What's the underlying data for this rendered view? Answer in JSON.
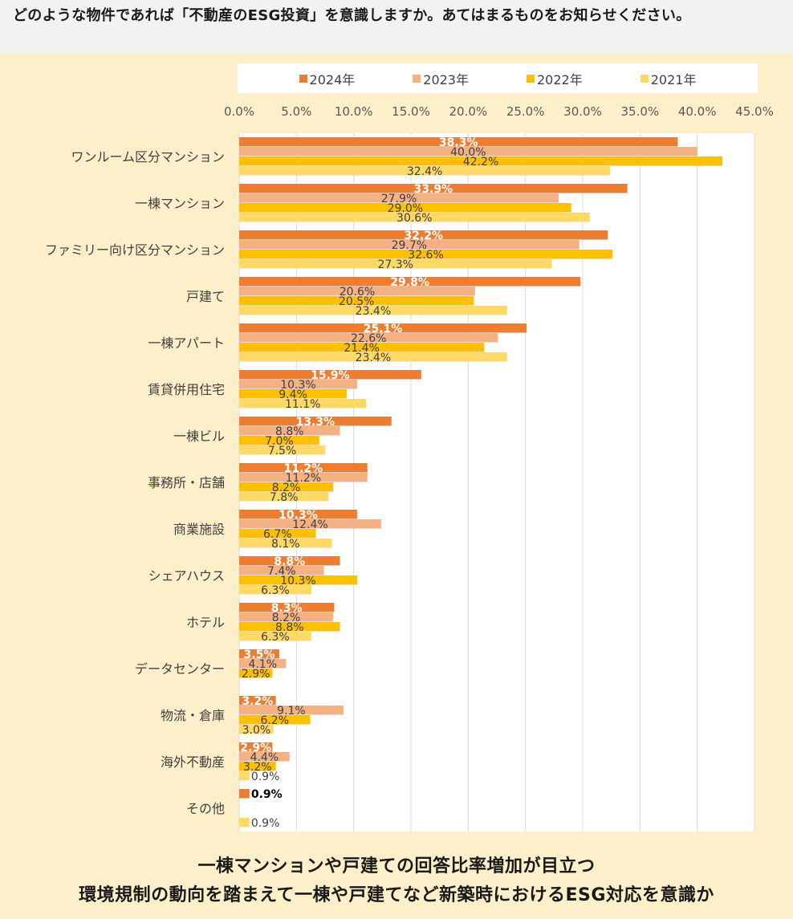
{
  "question": "どのような物件であれば「不動産のESG投資」を意識しますか。あてはまるものをお知らせください。",
  "footer": {
    "line1": "一棟マンションや戸建ての回答比率増加が目立つ",
    "line2": "環境規制の動向を踏まえて一棟や戸建てなど新築時におけるESG対応を意識か"
  },
  "colors": {
    "2024年": "#ed7d31",
    "2023年": "#f4b183",
    "2022年": "#ffc000",
    "2021年": "#ffd966"
  },
  "chart_data": {
    "type": "bar",
    "orientation": "horizontal",
    "title": "どのような物件であれば「不動産のESG投資」を意識しますか。あてはまるものをお知らせください。",
    "xlim": [
      0,
      45
    ],
    "xticks": [
      "0.0%",
      "5.0%",
      "10.0%",
      "15.0%",
      "20.0%",
      "25.0%",
      "30.0%",
      "35.0%",
      "40.0%",
      "45.0%"
    ],
    "legend_position": "top",
    "categories": [
      "ワンルーム区分マンション",
      "一棟マンション",
      "ファミリー向け区分マンション",
      "戸建て",
      "一棟アパート",
      "賃貸併用住宅",
      "一棟ビル",
      "事務所・店舗",
      "商業施設",
      "シェアハウス",
      "ホテル",
      "データセンター",
      "物流・倉庫",
      "海外不動産",
      "その他"
    ],
    "series": [
      {
        "name": "2024年",
        "values": [
          38.3,
          33.9,
          32.2,
          29.8,
          25.1,
          15.9,
          13.3,
          11.2,
          10.3,
          8.8,
          8.3,
          3.5,
          3.2,
          2.9,
          0.9
        ]
      },
      {
        "name": "2023年",
        "values": [
          40.0,
          27.9,
          29.7,
          20.6,
          22.6,
          10.3,
          8.8,
          11.2,
          12.4,
          7.4,
          8.2,
          4.1,
          9.1,
          4.4,
          null
        ]
      },
      {
        "name": "2022年",
        "values": [
          42.2,
          29.0,
          32.6,
          20.5,
          21.4,
          9.4,
          7.0,
          8.2,
          6.7,
          10.3,
          8.8,
          2.9,
          6.2,
          3.2,
          null
        ]
      },
      {
        "name": "2021年",
        "values": [
          32.4,
          30.6,
          27.3,
          23.4,
          23.4,
          11.1,
          7.5,
          7.8,
          8.1,
          6.3,
          6.3,
          null,
          3.0,
          0.9,
          0.9
        ]
      }
    ]
  }
}
